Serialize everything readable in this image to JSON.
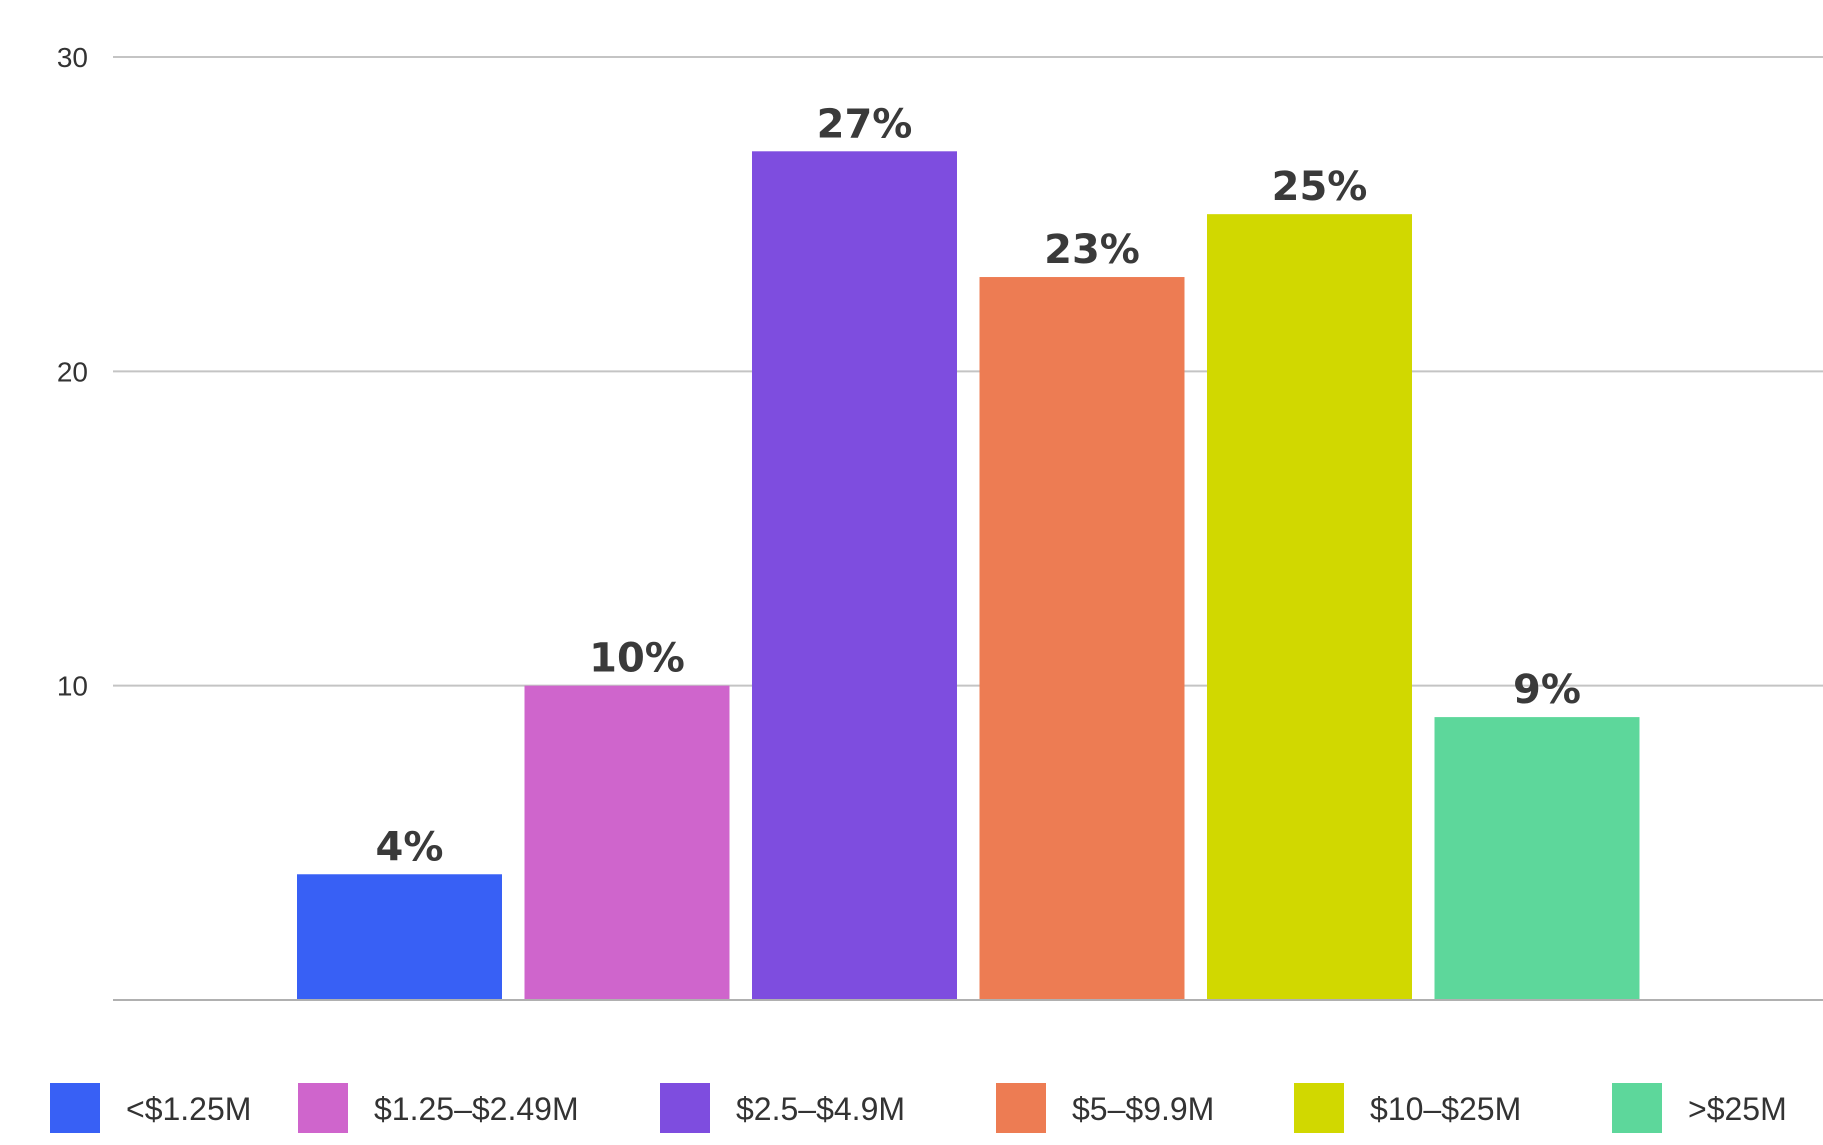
{
  "chart_data": {
    "type": "bar",
    "categories": [
      "<$1.25M",
      "$1.25–$2.49M",
      "$2.5–$4.9M",
      "$5–$9.9M",
      "$10–$25M",
      ">$25M"
    ],
    "values": [
      4,
      10,
      27,
      23,
      25,
      9
    ],
    "data_labels": [
      "4%",
      "10%",
      "27%",
      "23%",
      "25%",
      "9%"
    ],
    "colors": [
      "#3860f5",
      "#cf65cc",
      "#7e4ddf",
      "#ed7c53",
      "#d1d800",
      "#5dd79b"
    ],
    "yticks": [
      10,
      20,
      30
    ],
    "ylim": [
      0,
      30
    ],
    "title": "",
    "xlabel": "",
    "ylabel": "",
    "grid": true,
    "legend_position": "bottom"
  }
}
